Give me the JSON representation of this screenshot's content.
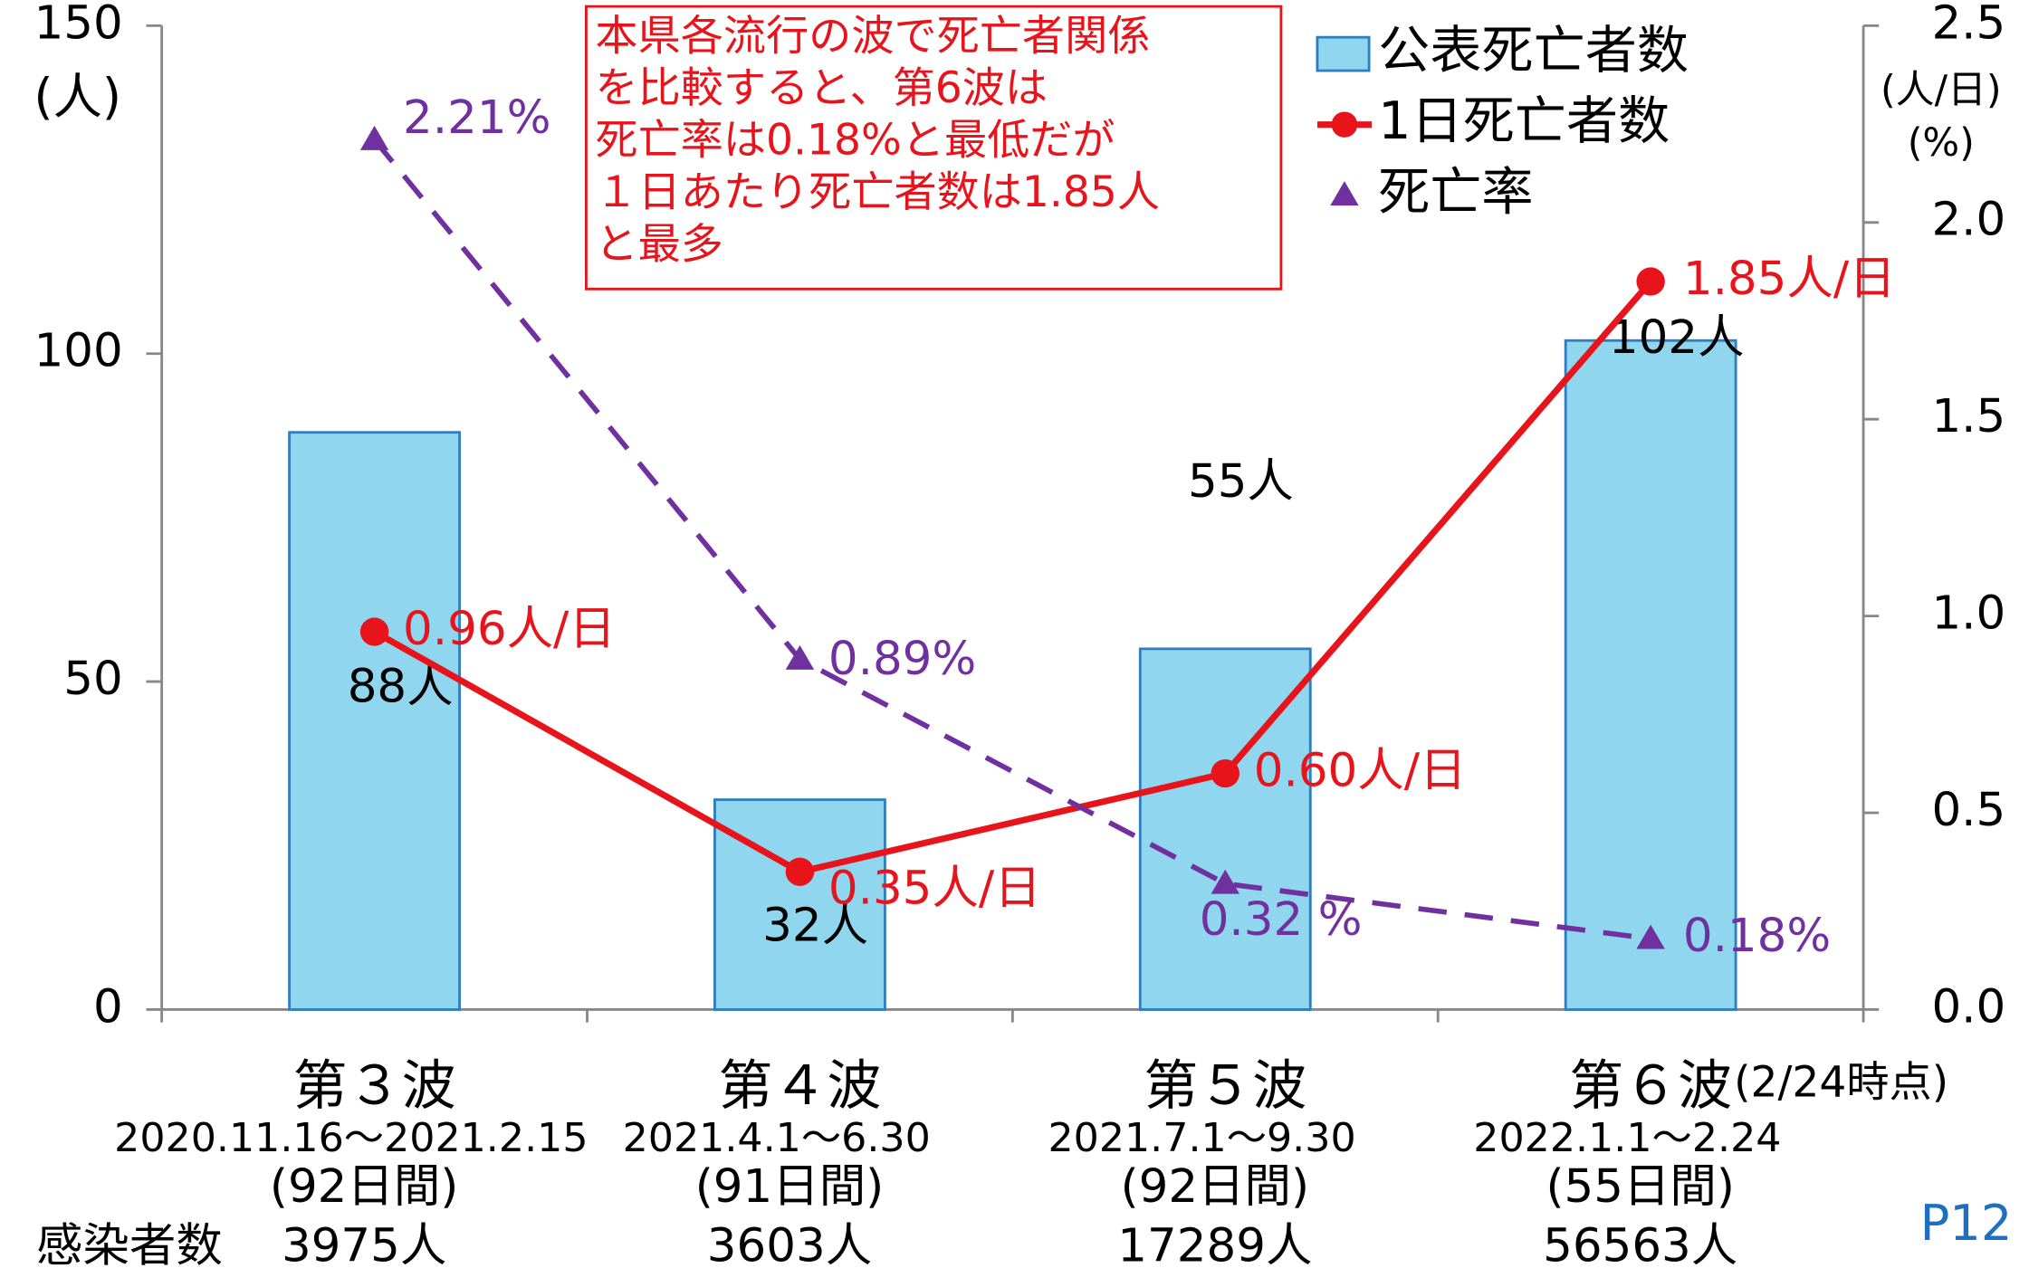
{
  "chart_data": {
    "type": "bar_line",
    "categories": [
      "第３波",
      "第４波",
      "第５波",
      "第６波"
    ],
    "category_note": "(2/24時点)",
    "periods": [
      "2020.11.16～2021.2.15",
      "2021.4.1～6.30",
      "2021.7.1～9.30",
      "2022.1.1～2.24"
    ],
    "days": [
      "(92日間)",
      "(91日間)",
      "(92日間)",
      "(55日間)"
    ],
    "infections_label": "感染者数",
    "infections": [
      "3975人",
      "3603人",
      "17289人",
      "56563人"
    ],
    "y_label": "(人)",
    "y2_label": [
      "(人/日)",
      "(%)"
    ],
    "annotation": [
      "本県各流行の波で死亡者関係",
      "を比較すると、第6波は",
      "死亡率は0.18%と最低だが",
      "１日あたり死亡者数は1.85人",
      "と最多"
    ],
    "page_label": "P12",
    "ylim": [
      0,
      150
    ],
    "yticks": [
      0,
      50,
      100,
      150
    ],
    "y2lim": [
      0,
      2.5
    ],
    "y2ticks": [
      {
        "value": 0,
        "label": "0.0"
      },
      0.5,
      {
        "value": 1,
        "label": "1.0"
      },
      1.5,
      {
        "value": 2,
        "label": "2.0"
      },
      2.5
    ],
    "series": [
      {
        "name": "公表死亡者数",
        "type": "bar",
        "color": "#8fd6ee",
        "values": [
          88,
          32,
          55,
          102
        ],
        "value_labels": [
          "88人",
          "32人",
          "55人",
          "102人"
        ]
      },
      {
        "name": "1日死亡者数",
        "type": "line",
        "axis": "y2",
        "color": "#e8141b",
        "marker": "circle",
        "values": [
          0.96,
          0.35,
          0.6,
          1.85
        ],
        "value_labels": [
          "0.96人/日",
          "0.35人/日",
          "0.60人/日",
          "1.85人/日"
        ]
      },
      {
        "name": "死亡率",
        "type": "line",
        "axis": "y2",
        "color": "#7030a0",
        "marker": "triangle",
        "dashed": true,
        "values": [
          2.21,
          0.89,
          0.32,
          0.18
        ],
        "value_labels": [
          "2.21%",
          "0.89%",
          "0.32 %",
          "0.18%"
        ]
      }
    ]
  }
}
